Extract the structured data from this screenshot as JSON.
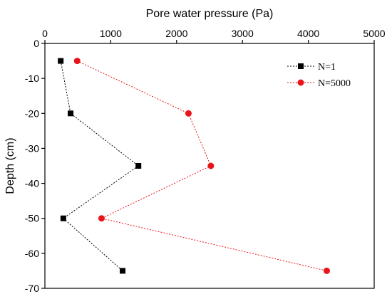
{
  "chart_data": {
    "type": "scatter",
    "title": "",
    "xlabel": "Pore water pressure (Pa)",
    "ylabel": "Depth (cm)",
    "x_axis_position": "top",
    "xlim": [
      0,
      5000
    ],
    "ylim": [
      -70,
      0
    ],
    "xticks": [
      0,
      1000,
      2000,
      3000,
      4000,
      5000
    ],
    "yticks": [
      0,
      -10,
      -20,
      -30,
      -40,
      -50,
      -60,
      -70
    ],
    "grid": false,
    "legend_position": "top-right",
    "series": [
      {
        "name": "N=1",
        "marker": "square",
        "line_style": "dotted",
        "color": "#000000",
        "points": [
          {
            "x": 240,
            "y": -5
          },
          {
            "x": 390,
            "y": -20
          },
          {
            "x": 1420,
            "y": -35
          },
          {
            "x": 280,
            "y": -50
          },
          {
            "x": 1180,
            "y": -65
          }
        ]
      },
      {
        "name": "N=5000",
        "marker": "circle",
        "line_style": "dotted",
        "color": "#e8141a",
        "points": [
          {
            "x": 490,
            "y": -5
          },
          {
            "x": 2180,
            "y": -20
          },
          {
            "x": 2520,
            "y": -35
          },
          {
            "x": 860,
            "y": -50
          },
          {
            "x": 4280,
            "y": -65
          }
        ]
      }
    ]
  }
}
